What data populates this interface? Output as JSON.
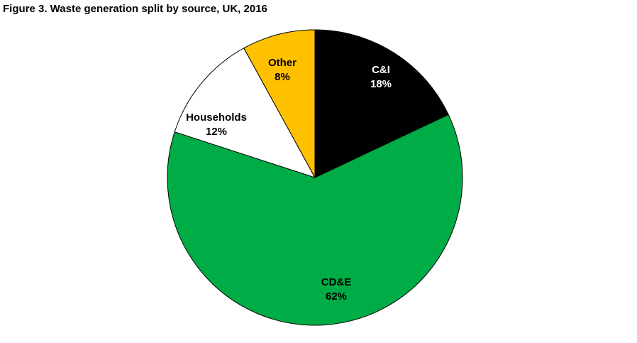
{
  "figure": {
    "title": "Figure 3. Waste generation split by source, UK, 2016"
  },
  "chart_data": {
    "type": "pie",
    "title": "Figure 3. Waste generation split by source, UK, 2016",
    "slices": [
      {
        "name": "C&I",
        "value": 18,
        "label": "18%",
        "color": "#000000",
        "text_color": "#ffffff"
      },
      {
        "name": "CD&E",
        "value": 62,
        "label": "62%",
        "color": "#00ac45",
        "text_color": "#000000"
      },
      {
        "name": "Households",
        "value": 12,
        "label": "12%",
        "color": "#ffffff",
        "text_color": "#000000"
      },
      {
        "name": "Other",
        "value": 8,
        "label": "8%",
        "color": "#ffc000",
        "text_color": "#000000"
      }
    ],
    "start_angle": "12 o'clock",
    "direction": "clockwise",
    "legend": "none"
  }
}
